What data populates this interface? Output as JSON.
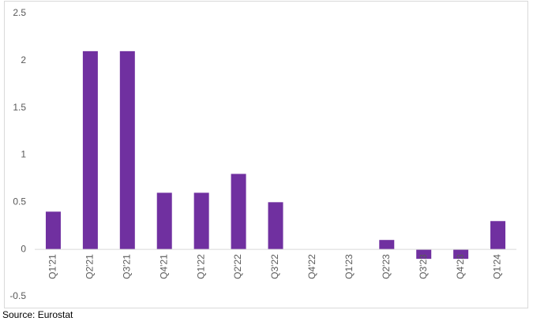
{
  "chart_data": {
    "type": "bar",
    "categories": [
      "Q1'21",
      "Q2'21",
      "Q3'21",
      "Q4'21",
      "Q1'22",
      "Q2'22",
      "Q3'22",
      "Q4'22",
      "Q1'23",
      "Q2'23",
      "Q3'23",
      "Q4'23",
      "Q1'24"
    ],
    "values": [
      0.4,
      2.1,
      2.1,
      0.6,
      0.6,
      0.8,
      0.5,
      0,
      0,
      0.1,
      -0.1,
      -0.1,
      0.3
    ],
    "color": "#7030a0",
    "ylim": [
      -0.5,
      2.5
    ],
    "yticks": [
      -0.5,
      0,
      0.5,
      1,
      1.5,
      2,
      2.5
    ],
    "grid": false,
    "source": "Source: Eurostat"
  }
}
